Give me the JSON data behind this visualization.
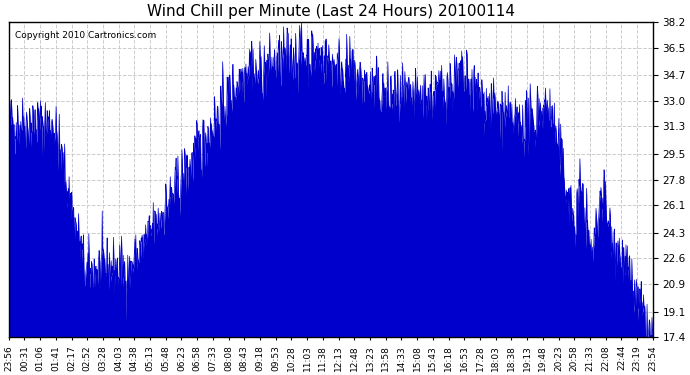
{
  "title": "Wind Chill per Minute (Last 24 Hours) 20100114",
  "copyright": "Copyright 2010 Cartronics.com",
  "line_color": "#0000cc",
  "fill_color": "#0000cc",
  "background_color": "#ffffff",
  "yticks": [
    17.4,
    19.1,
    20.9,
    22.6,
    24.3,
    26.1,
    27.8,
    29.5,
    31.3,
    33.0,
    34.7,
    36.5,
    38.2
  ],
  "ylim": [
    17.4,
    38.2
  ],
  "xtick_labels": [
    "23:56",
    "00:31",
    "01:06",
    "01:41",
    "02:17",
    "02:52",
    "03:28",
    "04:03",
    "04:38",
    "05:13",
    "05:48",
    "06:23",
    "06:58",
    "07:33",
    "08:08",
    "08:43",
    "09:18",
    "09:53",
    "10:28",
    "11:03",
    "11:38",
    "12:13",
    "12:48",
    "13:23",
    "13:58",
    "14:33",
    "15:08",
    "15:43",
    "16:18",
    "16:53",
    "17:28",
    "18:03",
    "18:38",
    "19:13",
    "19:48",
    "20:23",
    "20:58",
    "21:33",
    "22:08",
    "22:44",
    "23:19",
    "23:54"
  ],
  "grid_color": "#cccccc",
  "grid_style": "--"
}
